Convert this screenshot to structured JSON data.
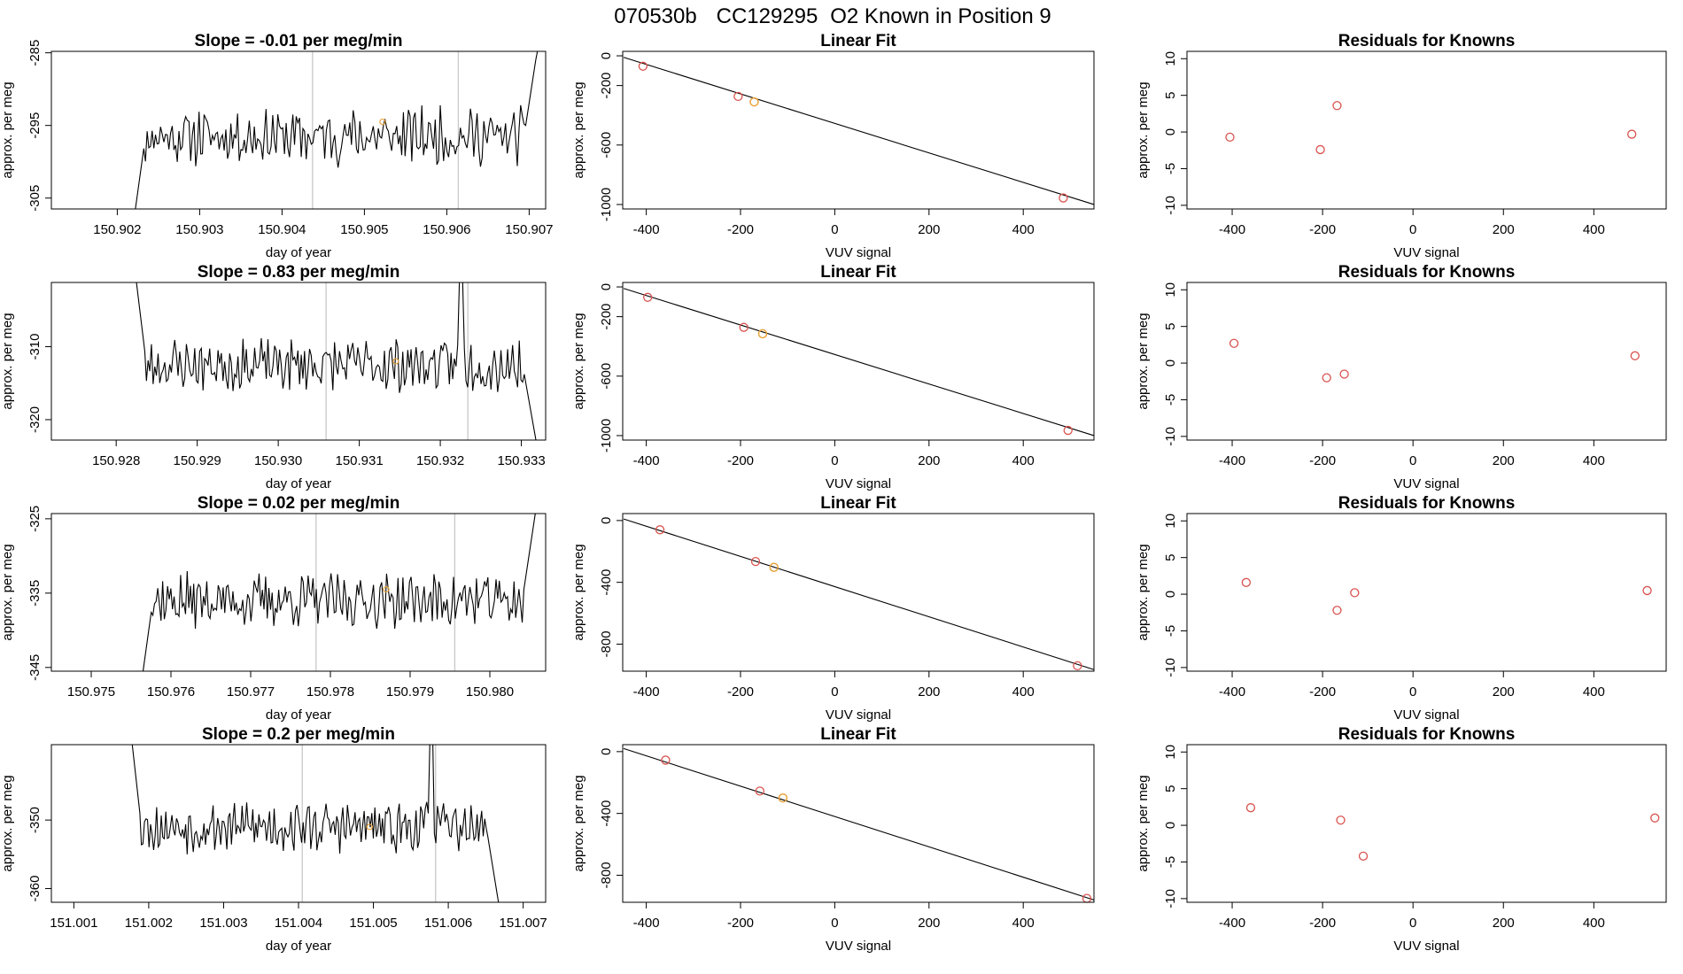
{
  "title": {
    "parts": [
      "070530b",
      "CC129295",
      "O2 Known in Position  9"
    ]
  },
  "colors": {
    "known_point": "#d9534f",
    "sample_point": "#e8a33c",
    "series_line": "#000000",
    "marker_line": "#c8c8c8"
  },
  "chart_data": [
    {
      "type": "line",
      "row": 1,
      "col": 1,
      "title": "Slope =  -0.01  per meg/min",
      "xlabel": "day of year",
      "ylabel": "approx. per meg",
      "xlim": [
        150.9012,
        150.9072
      ],
      "ylim": [
        -306.5,
        -284.8
      ],
      "xticks": [
        150.902,
        150.903,
        150.904,
        150.905,
        150.906,
        150.907
      ],
      "xtick_labels": [
        "150.902",
        "150.903",
        "150.904",
        "150.905",
        "150.906",
        "150.907"
      ],
      "yticks": [
        -285,
        -295,
        -305
      ],
      "ytick_labels": [
        "-285",
        "-295",
        "-305"
      ],
      "vlines": [
        150.90437,
        150.90614
      ],
      "series_window": [
        150.90222,
        150.9071
      ],
      "baseline": -296.5,
      "amplitude": 3.2,
      "rise_start": -306.5,
      "rise_end": -284.5,
      "highlight_point": {
        "x": 150.90522,
        "y": -294.5
      },
      "seed": 11
    },
    {
      "type": "scatter",
      "row": 1,
      "col": 2,
      "title": "Linear Fit",
      "xlabel": "VUV signal",
      "ylabel": "approx. per meg",
      "xlim": [
        -450,
        550
      ],
      "ylim": [
        -1030,
        30
      ],
      "xticks": [
        -400,
        -200,
        0,
        200,
        400
      ],
      "xtick_labels": [
        "-400",
        "-200",
        "0",
        "200",
        "400"
      ],
      "yticks": [
        0,
        -200,
        -600,
        -1000
      ],
      "ytick_labels": [
        "0",
        "-200",
        "-600",
        "-1000"
      ],
      "fit_line": [
        [
          -448,
          -10
        ],
        [
          550,
          -1000
        ]
      ],
      "known_points": [
        [
          -407,
          -70
        ],
        [
          -205,
          -273
        ],
        [
          485,
          -956
        ]
      ],
      "sample_points": [
        [
          -171,
          -310
        ]
      ]
    },
    {
      "type": "scatter",
      "row": 1,
      "col": 3,
      "title": "Residuals for Knowns",
      "xlabel": "VUV signal",
      "ylabel": "approx. per meg",
      "xlim": [
        -500,
        560
      ],
      "ylim": [
        -10.5,
        11
      ],
      "xticks": [
        -400,
        -200,
        0,
        200,
        400
      ],
      "xtick_labels": [
        "-400",
        "-200",
        "0",
        "200",
        "400"
      ],
      "yticks": [
        10,
        5,
        0,
        -5,
        -10
      ],
      "ytick_labels": [
        "10",
        "5",
        "0",
        "-5",
        "-10"
      ],
      "known_points": [
        [
          -405,
          -0.7
        ],
        [
          -205,
          -2.4
        ],
        [
          -168,
          3.6
        ],
        [
          484,
          -0.3
        ]
      ],
      "sample_points": []
    },
    {
      "type": "line",
      "row": 2,
      "col": 1,
      "title": "Slope =  0.83  per meg/min",
      "xlabel": "day of year",
      "ylabel": "approx. per meg",
      "xlim": [
        150.9272,
        150.9333
      ],
      "ylim": [
        -322.8,
        -301.2
      ],
      "xticks": [
        150.928,
        150.929,
        150.93,
        150.931,
        150.932,
        150.933
      ],
      "xtick_labels": [
        "150.928",
        "150.929",
        "150.930",
        "150.931",
        "150.932",
        "150.933"
      ],
      "yticks": [
        -310,
        -320
      ],
      "ytick_labels": [
        "-310",
        "-320"
      ],
      "vlines": [
        150.93059,
        150.93234
      ],
      "series_window": [
        150.92825,
        150.93318
      ],
      "baseline": -312.5,
      "amplitude": 3.0,
      "rise_start": -301.2,
      "rise_end": -322.8,
      "highlight_point": {
        "x": 150.93145,
        "y": -312.0
      },
      "spike": {
        "x": 150.93225,
        "y": -301.2
      },
      "seed": 23
    },
    {
      "type": "scatter",
      "row": 2,
      "col": 2,
      "title": "Linear Fit",
      "xlabel": "VUV signal",
      "ylabel": "approx. per meg",
      "xlim": [
        -450,
        550
      ],
      "ylim": [
        -1030,
        30
      ],
      "xticks": [
        -400,
        -200,
        0,
        200,
        400
      ],
      "xtick_labels": [
        "-400",
        "-200",
        "0",
        "200",
        "400"
      ],
      "yticks": [
        0,
        -200,
        -600,
        -1000
      ],
      "ytick_labels": [
        "0",
        "-200",
        "-600",
        "-1000"
      ],
      "fit_line": [
        [
          -448,
          -10
        ],
        [
          550,
          -1000
        ]
      ],
      "known_points": [
        [
          -397,
          -70
        ],
        [
          -193,
          -272
        ],
        [
          495,
          -965
        ]
      ],
      "sample_points": [
        [
          -153,
          -315
        ]
      ]
    },
    {
      "type": "scatter",
      "row": 2,
      "col": 3,
      "title": "Residuals for Knowns",
      "xlabel": "VUV signal",
      "ylabel": "approx. per meg",
      "xlim": [
        -500,
        560
      ],
      "ylim": [
        -10.5,
        11
      ],
      "xticks": [
        -400,
        -200,
        0,
        200,
        400
      ],
      "xtick_labels": [
        "-400",
        "-200",
        "0",
        "200",
        "400"
      ],
      "yticks": [
        10,
        5,
        0,
        -5,
        -10
      ],
      "ytick_labels": [
        "10",
        "5",
        "0",
        "-5",
        "-10"
      ],
      "known_points": [
        [
          -396,
          2.7
        ],
        [
          -191,
          -2.0
        ],
        [
          -152,
          -1.5
        ],
        [
          491,
          1.0
        ]
      ],
      "sample_points": []
    },
    {
      "type": "line",
      "row": 3,
      "col": 1,
      "title": "Slope =  0.02  per meg/min",
      "xlabel": "day of year",
      "ylabel": "approx. per meg",
      "xlim": [
        150.9745,
        150.9807
      ],
      "ylim": [
        -345.5,
        -324.3
      ],
      "xticks": [
        150.975,
        150.976,
        150.977,
        150.978,
        150.979,
        150.98
      ],
      "xtick_labels": [
        "150.975",
        "150.976",
        "150.977",
        "150.978",
        "150.979",
        "150.980"
      ],
      "yticks": [
        -325,
        -335,
        -345
      ],
      "ytick_labels": [
        "-325",
        "-335",
        "-345"
      ],
      "vlines": [
        150.97782,
        150.97956
      ],
      "series_window": [
        150.97565,
        150.98057
      ],
      "baseline": -336.0,
      "amplitude": 3.0,
      "rise_start": -345.5,
      "rise_end": -324.3,
      "highlight_point": {
        "x": 150.9787,
        "y": -334.5
      },
      "seed": 37
    },
    {
      "type": "scatter",
      "row": 3,
      "col": 2,
      "title": "Linear Fit",
      "xlabel": "VUV signal",
      "ylabel": "approx. per meg",
      "xlim": [
        -450,
        550
      ],
      "ylim": [
        -975,
        45
      ],
      "xticks": [
        -400,
        -200,
        0,
        200,
        400
      ],
      "xtick_labels": [
        "-400",
        "-200",
        "0",
        "200",
        "400"
      ],
      "yticks": [
        0,
        -400,
        -800
      ],
      "ytick_labels": [
        "0",
        "-400",
        "-800"
      ],
      "fit_line": [
        [
          -448,
          10
        ],
        [
          550,
          -965
        ]
      ],
      "known_points": [
        [
          -371,
          -60
        ],
        [
          -168,
          -265
        ],
        [
          515,
          -940
        ]
      ],
      "sample_points": [
        [
          -129,
          -303
        ]
      ]
    },
    {
      "type": "scatter",
      "row": 3,
      "col": 3,
      "title": "Residuals for Knowns",
      "xlabel": "VUV signal",
      "ylabel": "approx. per meg",
      "xlim": [
        -500,
        560
      ],
      "ylim": [
        -10.5,
        11
      ],
      "xticks": [
        -400,
        -200,
        0,
        200,
        400
      ],
      "xtick_labels": [
        "-400",
        "-200",
        "0",
        "200",
        "400"
      ],
      "yticks": [
        10,
        5,
        0,
        -5,
        -10
      ],
      "ytick_labels": [
        "10",
        "5",
        "0",
        "-5",
        "-10"
      ],
      "known_points": [
        [
          -369,
          1.6
        ],
        [
          -168,
          -2.2
        ],
        [
          -129,
          0.2
        ],
        [
          518,
          0.5
        ]
      ],
      "sample_points": []
    },
    {
      "type": "line",
      "row": 4,
      "col": 1,
      "title": "Slope =  0.2  per meg/min",
      "xlabel": "day of year",
      "ylabel": "approx. per meg",
      "xlim": [
        151.0007,
        151.0073
      ],
      "ylim": [
        -362.0,
        -339.0
      ],
      "xticks": [
        151.001,
        151.002,
        151.003,
        151.004,
        151.005,
        151.006,
        151.007
      ],
      "xtick_labels": [
        "151.001",
        "151.002",
        "151.003",
        "151.004",
        "151.005",
        "151.006",
        "151.007"
      ],
      "yticks": [
        -350,
        -360
      ],
      "ytick_labels": [
        "-350",
        "-360"
      ],
      "vlines": [
        151.00405,
        151.00583
      ],
      "series_window": [
        151.00178,
        151.00667
      ],
      "baseline": -351.0,
      "amplitude": 3.0,
      "rise_start": -339.0,
      "rise_end": -362.0,
      "highlight_point": {
        "x": 151.00495,
        "y": -351.0
      },
      "spike": {
        "x": 151.00578,
        "y": -339.0
      },
      "seed": 53
    },
    {
      "type": "scatter",
      "row": 4,
      "col": 2,
      "title": "Linear Fit",
      "xlabel": "VUV signal",
      "ylabel": "approx. per meg",
      "xlim": [
        -450,
        550
      ],
      "ylim": [
        -975,
        45
      ],
      "xticks": [
        -400,
        -200,
        0,
        200,
        400
      ],
      "xtick_labels": [
        "-400",
        "-200",
        "0",
        "200",
        "400"
      ],
      "yticks": [
        0,
        -400,
        -800
      ],
      "ytick_labels": [
        "0",
        "-400",
        "-800"
      ],
      "fit_line": [
        [
          -448,
          20
        ],
        [
          550,
          -960
        ]
      ],
      "known_points": [
        [
          -359,
          -55
        ],
        [
          -159,
          -255
        ],
        [
          535,
          -950
        ]
      ],
      "sample_points": [
        [
          -110,
          -300
        ]
      ]
    },
    {
      "type": "scatter",
      "row": 4,
      "col": 3,
      "title": "Residuals for Knowns",
      "xlabel": "VUV signal",
      "ylabel": "approx. per meg",
      "xlim": [
        -500,
        560
      ],
      "ylim": [
        -10.5,
        11
      ],
      "xticks": [
        -400,
        -200,
        0,
        200,
        400
      ],
      "xtick_labels": [
        "-400",
        "-200",
        "0",
        "200",
        "400"
      ],
      "yticks": [
        10,
        5,
        0,
        -5,
        -10
      ],
      "ytick_labels": [
        "10",
        "5",
        "0",
        "-5",
        "-10"
      ],
      "known_points": [
        [
          -359,
          2.4
        ],
        [
          -160,
          0.7
        ],
        [
          -110,
          -4.2
        ],
        [
          535,
          1.0
        ]
      ],
      "sample_points": []
    }
  ]
}
